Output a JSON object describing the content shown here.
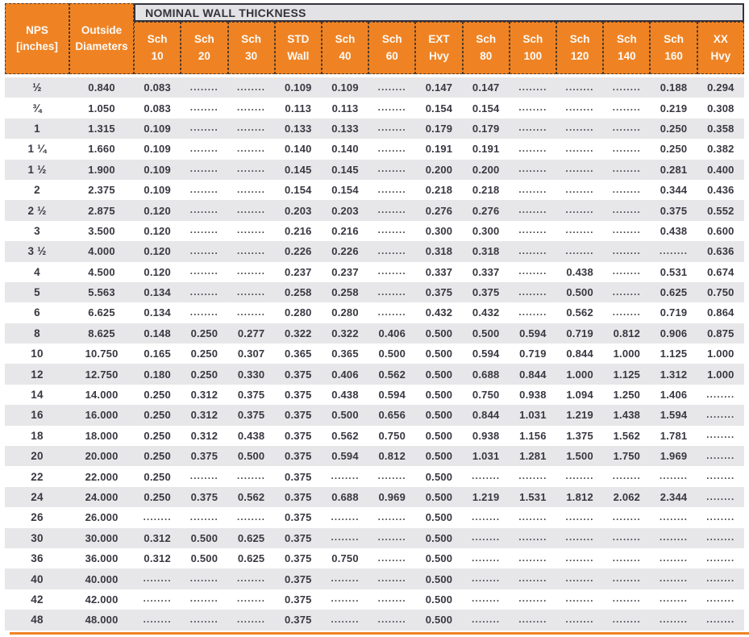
{
  "colors": {
    "header_orange": "#EF8324",
    "header_strip_gray": "#E3E3E5",
    "row_stripe_gray": "#E7E7E9",
    "text_dark": "#34323B",
    "text_white": "#FFFFFF"
  },
  "table": {
    "group_header": "NOMINAL WALL THICKNESS",
    "placeholder": "........",
    "columns": [
      {
        "l1": "NPS",
        "l2": "[inches]"
      },
      {
        "l1": "Outside",
        "l2": "Diameters"
      },
      {
        "l1": "Sch",
        "l2": "10"
      },
      {
        "l1": "Sch",
        "l2": "20"
      },
      {
        "l1": "Sch",
        "l2": "30"
      },
      {
        "l1": "STD",
        "l2": "Wall"
      },
      {
        "l1": "Sch",
        "l2": "40"
      },
      {
        "l1": "Sch",
        "l2": "60"
      },
      {
        "l1": "EXT",
        "l2": "Hvy"
      },
      {
        "l1": "Sch",
        "l2": "80"
      },
      {
        "l1": "Sch",
        "l2": "100"
      },
      {
        "l1": "Sch",
        "l2": "120"
      },
      {
        "l1": "Sch",
        "l2": "140"
      },
      {
        "l1": "Sch",
        "l2": "160"
      },
      {
        "l1": "XX",
        "l2": "Hvy"
      }
    ],
    "rows": [
      {
        "nps": "½",
        "od": "0.840",
        "values": [
          "0.083",
          "........",
          "........",
          "0.109",
          "0.109",
          "........",
          "0.147",
          "0.147",
          "........",
          "........",
          "........",
          "0.188",
          "0.294"
        ]
      },
      {
        "nps": "¾",
        "od": "1.050",
        "values": [
          "0.083",
          "........",
          "........",
          "0.113",
          "0.113",
          "........",
          "0.154",
          "0.154",
          "........",
          "........",
          "........",
          "0.219",
          "0.308"
        ]
      },
      {
        "nps": "1",
        "od": "1.315",
        "values": [
          "0.109",
          "........",
          "........",
          "0.133",
          "0.133",
          "........",
          "0.179",
          "0.179",
          "........",
          "........",
          "........",
          "0.250",
          "0.358"
        ]
      },
      {
        "nps": "1 ¼",
        "od": "1.660",
        "values": [
          "0.109",
          "........",
          "........",
          "0.140",
          "0.140",
          "........",
          "0.191",
          "0.191",
          "........",
          "........",
          "........",
          "0.250",
          "0.382"
        ]
      },
      {
        "nps": "1 ½",
        "od": "1.900",
        "values": [
          "0.109",
          "........",
          "........",
          "0.145",
          "0.145",
          "........",
          "0.200",
          "0.200",
          "........",
          "........",
          "........",
          "0.281",
          "0.400"
        ]
      },
      {
        "nps": "2",
        "od": "2.375",
        "values": [
          "0.109",
          "........",
          "........",
          "0.154",
          "0.154",
          "........",
          "0.218",
          "0.218",
          "........",
          "........",
          "........",
          "0.344",
          "0.436"
        ]
      },
      {
        "nps": "2 ½",
        "od": "2.875",
        "values": [
          "0.120",
          "........",
          "........",
          "0.203",
          "0.203",
          "........",
          "0.276",
          "0.276",
          "........",
          "........",
          "........",
          "0.375",
          "0.552"
        ]
      },
      {
        "nps": "3",
        "od": "3.500",
        "values": [
          "0.120",
          "........",
          "........",
          "0.216",
          "0.216",
          "........",
          "0.300",
          "0.300",
          "........",
          "........",
          "........",
          "0.438",
          "0.600"
        ]
      },
      {
        "nps": "3 ½",
        "od": "4.000",
        "values": [
          "0.120",
          "........",
          "........",
          "0.226",
          "0.226",
          "........",
          "0.318",
          "0.318",
          "........",
          "........",
          "........",
          "........",
          "0.636"
        ]
      },
      {
        "nps": "4",
        "od": "4.500",
        "values": [
          "0.120",
          "........",
          "........",
          "0.237",
          "0.237",
          "........",
          "0.337",
          "0.337",
          "........",
          "0.438",
          "........",
          "0.531",
          "0.674"
        ]
      },
      {
        "nps": "5",
        "od": "5.563",
        "values": [
          "0.134",
          "........",
          "........",
          "0.258",
          "0.258",
          "........",
          "0.375",
          "0.375",
          "........",
          "0.500",
          "........",
          "0.625",
          "0.750"
        ]
      },
      {
        "nps": "6",
        "od": "6.625",
        "values": [
          "0.134",
          "........",
          "........",
          "0.280",
          "0.280",
          "........",
          "0.432",
          "0.432",
          "........",
          "0.562",
          "........",
          "0.719",
          "0.864"
        ]
      },
      {
        "nps": "8",
        "od": "8.625",
        "values": [
          "0.148",
          "0.250",
          "0.277",
          "0.322",
          "0.322",
          "0.406",
          "0.500",
          "0.500",
          "0.594",
          "0.719",
          "0.812",
          "0.906",
          "0.875"
        ]
      },
      {
        "nps": "10",
        "od": "10.750",
        "values": [
          "0.165",
          "0.250",
          "0.307",
          "0.365",
          "0.365",
          "0.500",
          "0.500",
          "0.594",
          "0.719",
          "0.844",
          "1.000",
          "1.125",
          "1.000"
        ]
      },
      {
        "nps": "12",
        "od": "12.750",
        "values": [
          "0.180",
          "0.250",
          "0.330",
          "0.375",
          "0.406",
          "0.562",
          "0.500",
          "0.688",
          "0.844",
          "1.000",
          "1.125",
          "1.312",
          "1.000"
        ]
      },
      {
        "nps": "14",
        "od": "14.000",
        "values": [
          "0.250",
          "0.312",
          "0.375",
          "0.375",
          "0.438",
          "0.594",
          "0.500",
          "0.750",
          "0.938",
          "1.094",
          "1.250",
          "1.406",
          "........"
        ]
      },
      {
        "nps": "16",
        "od": "16.000",
        "values": [
          "0.250",
          "0.312",
          "0.375",
          "0.375",
          "0.500",
          "0.656",
          "0.500",
          "0.844",
          "1.031",
          "1.219",
          "1.438",
          "1.594",
          "........"
        ]
      },
      {
        "nps": "18",
        "od": "18.000",
        "values": [
          "0.250",
          "0.312",
          "0.438",
          "0.375",
          "0.562",
          "0.750",
          "0.500",
          "0.938",
          "1.156",
          "1.375",
          "1.562",
          "1.781",
          "........"
        ]
      },
      {
        "nps": "20",
        "od": "20.000",
        "values": [
          "0.250",
          "0.375",
          "0.500",
          "0.375",
          "0.594",
          "0.812",
          "0.500",
          "1.031",
          "1.281",
          "1.500",
          "1.750",
          "1.969",
          "........"
        ]
      },
      {
        "nps": "22",
        "od": "22.000",
        "values": [
          "0.250",
          "........",
          "........",
          "0.375",
          "........",
          "........",
          "0.500",
          "........",
          "........",
          "........",
          "........",
          "........",
          "........"
        ]
      },
      {
        "nps": "24",
        "od": "24.000",
        "values": [
          "0.250",
          "0.375",
          "0.562",
          "0.375",
          "0.688",
          "0.969",
          "0.500",
          "1.219",
          "1.531",
          "1.812",
          "2.062",
          "2.344",
          "........"
        ]
      },
      {
        "nps": "26",
        "od": "26.000",
        "values": [
          "........",
          "........",
          "........",
          "0.375",
          "........",
          "........",
          "0.500",
          "........",
          "........",
          "........",
          "........",
          "........",
          "........"
        ]
      },
      {
        "nps": "30",
        "od": "30.000",
        "values": [
          "0.312",
          "0.500",
          "0.625",
          "0.375",
          "........",
          "........",
          "0.500",
          "........",
          "........",
          "........",
          "........",
          "........",
          "........"
        ]
      },
      {
        "nps": "36",
        "od": "36.000",
        "values": [
          "0.312",
          "0.500",
          "0.625",
          "0.375",
          "0.750",
          "........",
          "0.500",
          "........",
          "........",
          "........",
          "........",
          "........",
          "........"
        ]
      },
      {
        "nps": "40",
        "od": "40.000",
        "values": [
          "........",
          "........",
          "........",
          "0.375",
          "........",
          "........",
          "0.500",
          "........",
          "........",
          "........",
          "........",
          "........",
          "........"
        ]
      },
      {
        "nps": "42",
        "od": "42.000",
        "values": [
          "........",
          "........",
          "........",
          "0.375",
          "........",
          "........",
          "0.500",
          "........",
          "........",
          "........",
          "........",
          "........",
          "........"
        ]
      },
      {
        "nps": "48",
        "od": "48.000",
        "values": [
          "........",
          "........",
          "........",
          "0.375",
          "........",
          "........",
          "0.500",
          "........",
          "........",
          "........",
          "........",
          "........",
          "........"
        ]
      }
    ]
  }
}
